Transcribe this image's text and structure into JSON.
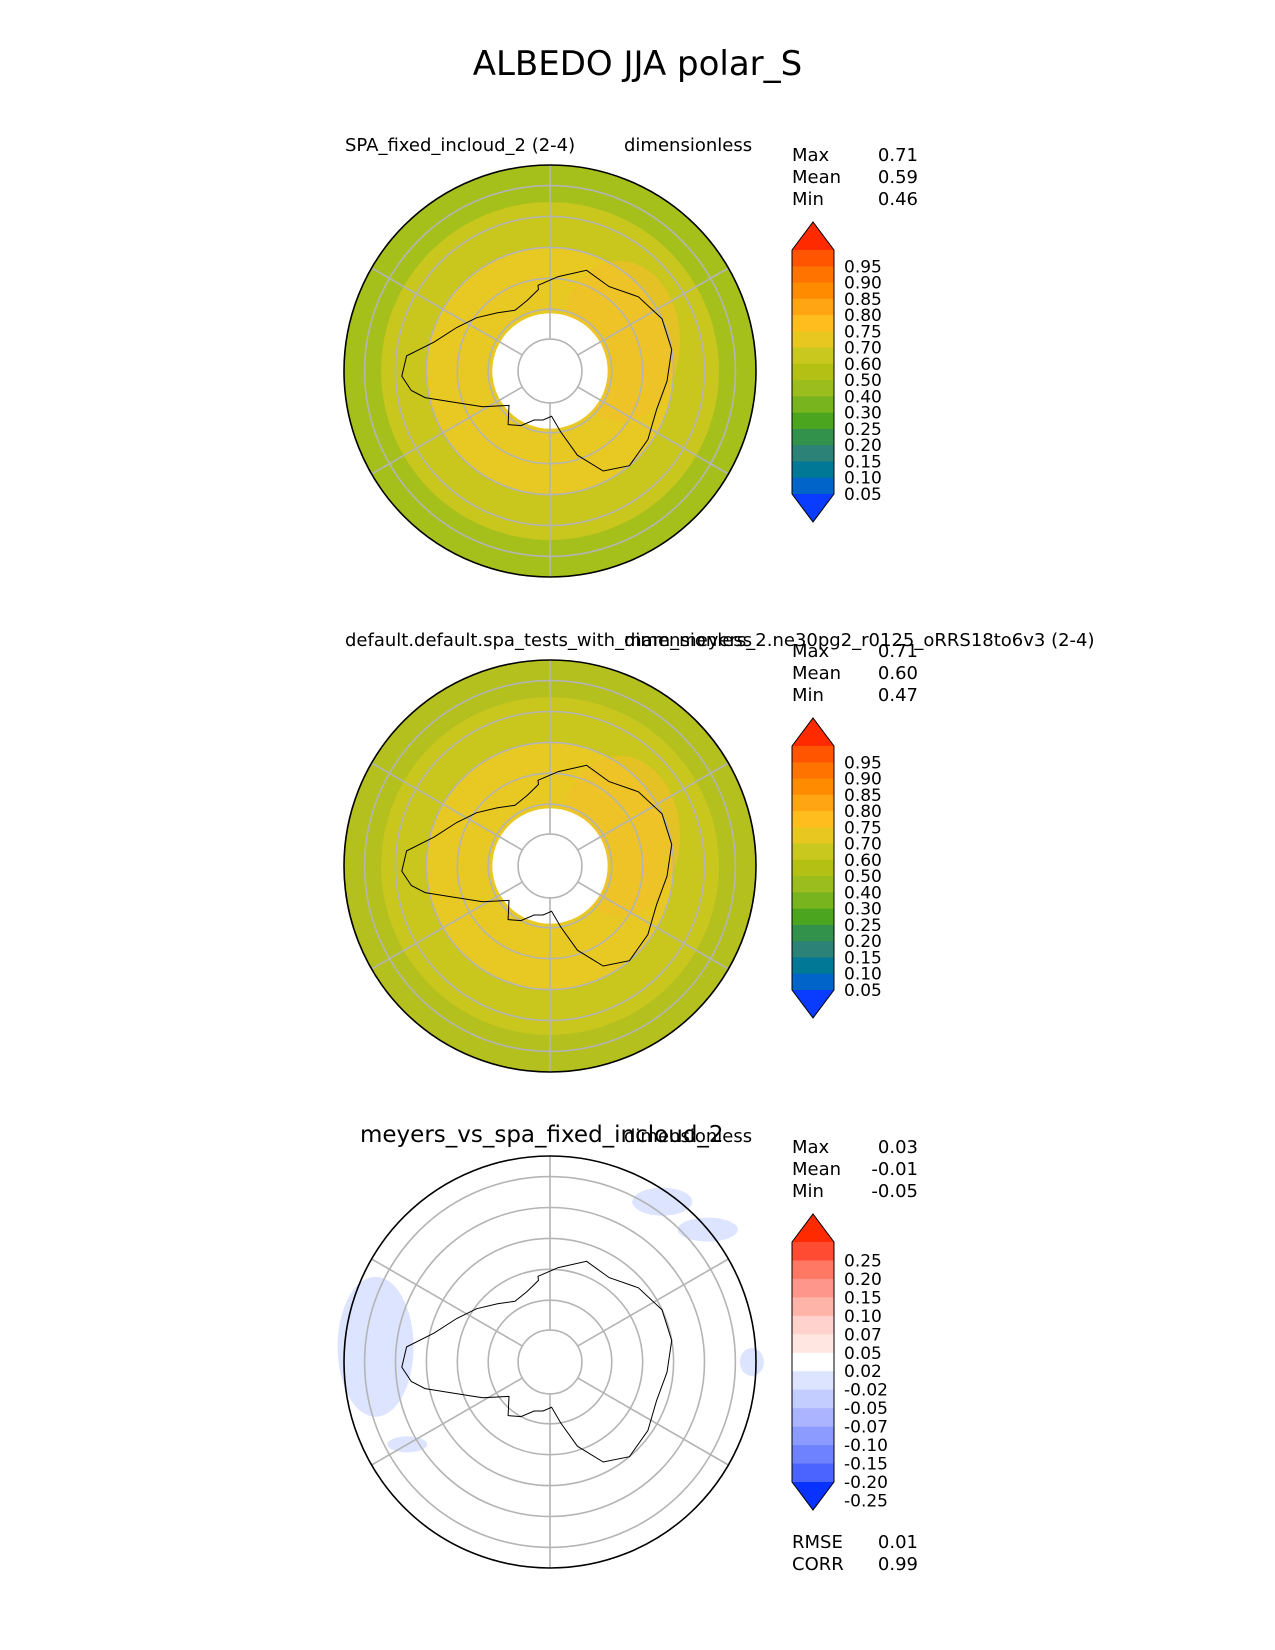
{
  "figure": {
    "title": "ALBEDO JJA polar_S"
  },
  "chart_data": [
    {
      "type": "polar_contour_map",
      "panel": "test",
      "left_title": "SPA_fixed_incloud_2 (2-4)",
      "right_title": "dimensionless",
      "stats": [
        {
          "label": "Max",
          "value": "0.71"
        },
        {
          "label": "Mean",
          "value": "0.59"
        },
        {
          "label": "Min",
          "value": "0.46"
        }
      ],
      "colorbar": {
        "levels": [
          "0.95",
          "0.90",
          "0.85",
          "0.80",
          "0.75",
          "0.70",
          "0.60",
          "0.50",
          "0.40",
          "0.30",
          "0.25",
          "0.20",
          "0.15",
          "0.10",
          "0.05"
        ],
        "colors": [
          "#ff2a00",
          "#ff5500",
          "#ff7300",
          "#ff8c00",
          "#ffa514",
          "#ffbe1e",
          "#e8c820",
          "#c8c81e",
          "#b4c014",
          "#9bbe1e",
          "#78b41e",
          "#4ba51e",
          "#32914b",
          "#2d8278",
          "#007896",
          "#0064c8",
          "#0a3cff"
        ],
        "extend": "both"
      },
      "field": {
        "ring_colors": [
          "#e8c822",
          "#e8c822",
          "#e8c822",
          "#c9c61e",
          "#a6c01b"
        ],
        "pole_hole": true
      }
    },
    {
      "type": "polar_contour_map",
      "panel": "reference",
      "left_title": "default.default.spa_tests_with_mam_meyers_2.ne30pg2_r0125_oRRS18to6v3 (2-4)",
      "right_title": "dimensionless",
      "stats": [
        {
          "label": "Max",
          "value": "0.71"
        },
        {
          "label": "Mean",
          "value": "0.60"
        },
        {
          "label": "Min",
          "value": "0.47"
        }
      ],
      "colorbar": {
        "levels": [
          "0.95",
          "0.90",
          "0.85",
          "0.80",
          "0.75",
          "0.70",
          "0.60",
          "0.50",
          "0.40",
          "0.30",
          "0.25",
          "0.20",
          "0.15",
          "0.10",
          "0.05"
        ],
        "colors": [
          "#ff2a00",
          "#ff5500",
          "#ff7300",
          "#ff8c00",
          "#ffa514",
          "#ffbe1e",
          "#e8c820",
          "#c8c81e",
          "#b4c014",
          "#9bbe1e",
          "#78b41e",
          "#4ba51e",
          "#32914b",
          "#2d8278",
          "#007896",
          "#0064c8",
          "#0a3cff"
        ],
        "extend": "both"
      },
      "field": {
        "ring_colors": [
          "#e8c822",
          "#e8c822",
          "#e8c822",
          "#c9c61e",
          "#b4c01e"
        ],
        "pole_hole": true
      }
    },
    {
      "type": "polar_contour_map",
      "panel": "difference",
      "left_title": "meyers_vs_spa_fixed_incloud_2",
      "right_title": "dimensionless",
      "stats": [
        {
          "label": "Max",
          "value": "0.03"
        },
        {
          "label": "Mean",
          "value": "-0.01"
        },
        {
          "label": "Min",
          "value": "-0.05"
        }
      ],
      "colorbar": {
        "levels": [
          "0.25",
          "0.20",
          "0.15",
          "0.10",
          "0.07",
          "0.05",
          "0.02",
          "-0.02",
          "-0.05",
          "-0.07",
          "-0.10",
          "-0.15",
          "-0.20",
          "-0.25"
        ],
        "colors": [
          "#ff2a00",
          "#ff4b32",
          "#ff7864",
          "#ff968c",
          "#ffb4aa",
          "#ffd2cd",
          "#ffe6e1",
          "#ffffff",
          "#dce4ff",
          "#c3cdff",
          "#aab4ff",
          "#8c9bff",
          "#6e82ff",
          "#4b64ff",
          "#0a32ff"
        ],
        "extend": "both"
      },
      "field": {
        "ring_colors": [
          "#ffffff",
          "#ffffff",
          "#ffffff",
          "#ffffff",
          "#ffffff"
        ],
        "pole_hole": false
      },
      "footer_stats": [
        {
          "label": "RMSE",
          "value": "0.01"
        },
        {
          "label": "CORR",
          "value": "0.99"
        }
      ]
    }
  ]
}
